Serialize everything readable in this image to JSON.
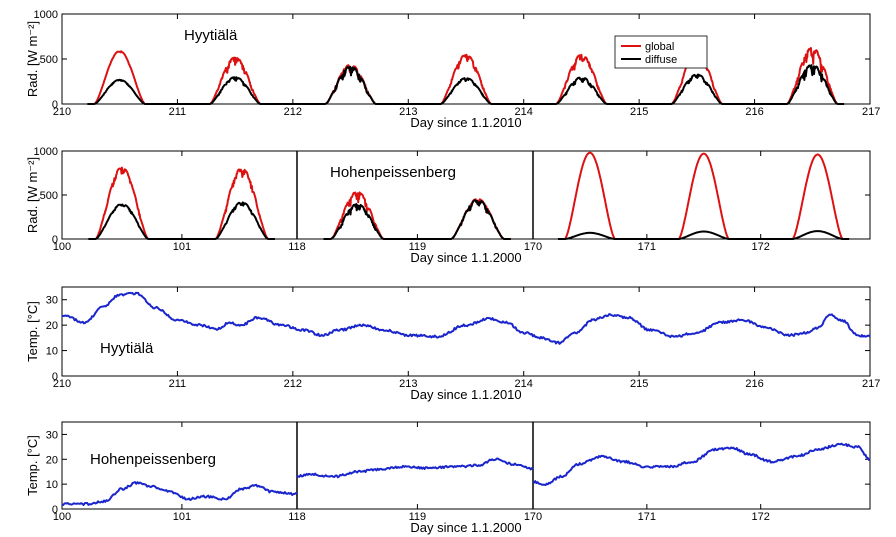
{
  "colors": {
    "global": "#dd1111",
    "diffuse": "#000000",
    "temperature": "#1a25cc"
  },
  "chart_data": [
    {
      "id": "rad_hyytiala",
      "type": "line",
      "annotation": "Hyytiälä",
      "xlabel": "Day since 1.1.2010",
      "ylabel": "Rad. [W m⁻²]",
      "xlim": [
        210,
        217
      ],
      "ylim": [
        0,
        1000
      ],
      "xticks": [
        210,
        211,
        212,
        213,
        214,
        215,
        216,
        217
      ],
      "yticks": [
        0,
        500,
        1000
      ],
      "legend": {
        "position": "top-right",
        "entries": [
          "global",
          "diffuse"
        ]
      },
      "series": [
        {
          "name": "global",
          "peaks": [
            {
              "day": 210,
              "peak": 590,
              "noise": 0.05
            },
            {
              "day": 211,
              "peak": 520,
              "noise": 0.35
            },
            {
              "day": 212,
              "peak": 440,
              "noise": 0.45
            },
            {
              "day": 213,
              "peak": 550,
              "noise": 0.25
            },
            {
              "day": 214,
              "peak": 550,
              "noise": 0.35
            },
            {
              "day": 215,
              "peak": 580,
              "noise": 0.25
            },
            {
              "day": 216,
              "peak": 630,
              "noise": 0.5
            }
          ]
        },
        {
          "name": "diffuse",
          "peaks": [
            {
              "day": 210,
              "peak": 270,
              "noise": 0.1
            },
            {
              "day": 211,
              "peak": 300,
              "noise": 0.25
            },
            {
              "day": 212,
              "peak": 420,
              "noise": 0.45
            },
            {
              "day": 213,
              "peak": 290,
              "noise": 0.25
            },
            {
              "day": 214,
              "peak": 300,
              "noise": 0.35
            },
            {
              "day": 215,
              "peak": 330,
              "noise": 0.3
            },
            {
              "day": 216,
              "peak": 440,
              "noise": 0.5
            }
          ]
        }
      ]
    },
    {
      "id": "rad_hohenpeissenberg",
      "type": "line",
      "annotation": "Hohenpeissenberg",
      "xlabel": "Day since 1.1.2000",
      "ylabel": "Rad. [W m⁻²]",
      "ylim": [
        0,
        1000
      ],
      "yticks": [
        0,
        500,
        1000
      ],
      "segments": [
        {
          "xlim": [
            100,
            101.96
          ],
          "xticks": [
            100,
            101
          ]
        },
        {
          "xlim": [
            118,
            119.96
          ],
          "xticks": [
            118,
            119
          ]
        },
        {
          "xlim": [
            170,
            172.96
          ],
          "xticks": [
            170,
            171,
            172
          ]
        }
      ],
      "series": [
        {
          "name": "global",
          "peaks": [
            {
              "day": 100,
              "peak": 820,
              "noise": 0.2
            },
            {
              "day": 101,
              "peak": 810,
              "noise": 0.25
            },
            {
              "day": 118,
              "peak": 540,
              "noise": 0.4
            },
            {
              "day": 119,
              "peak": 460,
              "noise": 0.3
            },
            {
              "day": 170,
              "peak": 980,
              "noise": 0.0
            },
            {
              "day": 171,
              "peak": 970,
              "noise": 0.0
            },
            {
              "day": 172,
              "peak": 960,
              "noise": 0.0
            }
          ]
        },
        {
          "name": "diffuse",
          "peaks": [
            {
              "day": 100,
              "peak": 400,
              "noise": 0.15
            },
            {
              "day": 101,
              "peak": 420,
              "noise": 0.2
            },
            {
              "day": 118,
              "peak": 400,
              "noise": 0.4
            },
            {
              "day": 119,
              "peak": 450,
              "noise": 0.3
            },
            {
              "day": 170,
              "peak": 70,
              "noise": 0.0
            },
            {
              "day": 171,
              "peak": 85,
              "noise": 0.0
            },
            {
              "day": 172,
              "peak": 90,
              "noise": 0.0
            }
          ]
        }
      ]
    },
    {
      "id": "temp_hyytiala",
      "type": "line",
      "annotation": "Hyytiälä",
      "xlabel": "Day since 1.1.2010",
      "ylabel": "Temp. [°C]",
      "xlim": [
        210,
        217
      ],
      "ylim": [
        0,
        35
      ],
      "xticks": [
        210,
        211,
        212,
        213,
        214,
        215,
        216,
        217
      ],
      "yticks": [
        0,
        10,
        20,
        30
      ],
      "series": [
        {
          "name": "temperature",
          "x": [
            210,
            210.2,
            210.35,
            210.5,
            210.65,
            210.8,
            211.0,
            211.2,
            211.35,
            211.45,
            211.55,
            211.7,
            211.9,
            212.1,
            212.25,
            212.4,
            212.6,
            212.8,
            213.0,
            213.25,
            213.5,
            213.7,
            213.85,
            214.0,
            214.15,
            214.3,
            214.45,
            214.6,
            214.75,
            214.9,
            215.1,
            215.3,
            215.5,
            215.7,
            215.9,
            216.1,
            216.3,
            216.45,
            216.55,
            216.65,
            216.75,
            216.9,
            217.0
          ],
          "values": [
            24,
            21,
            27,
            32,
            32.5,
            27,
            22,
            20,
            18.5,
            21,
            20,
            23,
            20,
            18,
            16,
            18,
            20,
            18,
            16,
            15.5,
            20,
            22.5,
            21,
            17,
            15,
            13,
            17,
            22,
            24,
            23,
            18,
            15.5,
            17,
            21,
            22,
            19,
            16,
            17,
            19,
            24,
            22,
            16,
            15.5
          ]
        }
      ]
    },
    {
      "id": "temp_hohenpeissenberg",
      "type": "line",
      "annotation": "Hohenpeissenberg",
      "xlabel": "Day since 1.1.2000",
      "ylabel": "Temp. [°C]",
      "ylim": [
        0,
        35
      ],
      "yticks": [
        0,
        10,
        20,
        30
      ],
      "segments": [
        {
          "xlim": [
            100,
            101.96
          ],
          "xticks": [
            100,
            101
          ]
        },
        {
          "xlim": [
            118,
            119.96
          ],
          "xticks": [
            118,
            119
          ]
        },
        {
          "xlim": [
            170,
            172.96
          ],
          "xticks": [
            170,
            171,
            172
          ]
        }
      ],
      "series": [
        {
          "name": "temperature",
          "x": [
            100,
            100.2,
            100.35,
            100.5,
            100.62,
            100.75,
            100.9,
            101.05,
            101.2,
            101.35,
            101.5,
            101.62,
            101.75,
            101.96,
            118,
            118.1,
            118.3,
            118.5,
            118.7,
            118.9,
            119.1,
            119.3,
            119.5,
            119.65,
            119.8,
            119.96,
            170,
            170.1,
            170.25,
            170.4,
            170.6,
            170.8,
            171.0,
            171.2,
            171.4,
            171.6,
            171.75,
            171.9,
            172.1,
            172.3,
            172.5,
            172.7,
            172.85,
            172.96
          ],
          "values": [
            2,
            2,
            3,
            8,
            10.5,
            9,
            7,
            4,
            5,
            4,
            8,
            9.5,
            7,
            6,
            13,
            14,
            13,
            15,
            16,
            17,
            16.5,
            17,
            17.5,
            20,
            18,
            16,
            11,
            10,
            13,
            18,
            21,
            19,
            17,
            17,
            19,
            24,
            24.5,
            22,
            19,
            21,
            24,
            26,
            25,
            20
          ]
        }
      ]
    }
  ]
}
